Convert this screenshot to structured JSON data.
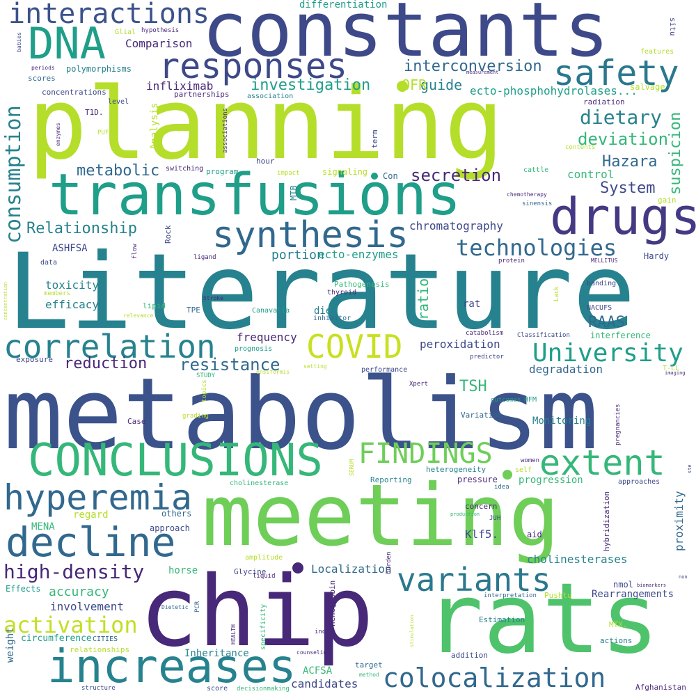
{
  "palette": {
    "yellow_green": "#b5de2b",
    "bright_green": "#6ece58",
    "teal_green": "#35b779",
    "teal": "#1f9e89",
    "blue_teal": "#26828e",
    "steel_blue": "#31688e",
    "indigo": "#3e4989",
    "dark_purple": "#482878"
  },
  "words": {
    "literature": "Literature",
    "metabolism": "metabolism",
    "planning": "planning",
    "constants": "constants",
    "meeting": "meeting",
    "chip": "chip",
    "rats": "rats",
    "transfusions": "transfusions",
    "drugs": "drugs",
    "conclusions": "CONCLUSIONS",
    "dna": "DNA",
    "responses": "responses",
    "safety": "safety",
    "increases": "increases",
    "decline": "decline",
    "synthesis": "synthesis",
    "correlation": "correlation",
    "covid": "COVID",
    "interactions": "interactions",
    "hyperemia": "hyperemia",
    "variants": "variants",
    "extent": "extent",
    "colocalization": "colocalization",
    "findings": "FINDINGS",
    "technologies": "technologies",
    "consumption": "consumption",
    "university": "University",
    "activation": "activation",
    "high_density": "high-density",
    "dietary": "dietary",
    "interconversion": "interconversion",
    "investigation": "investigation",
    "deviation": "deviation",
    "secretion": "secretion",
    "metabolic": "metabolic",
    "relationship": "Relationship",
    "resistance": "resistance",
    "reduction": "reduction",
    "system": "System",
    "hazara": "Hazara",
    "raas": "RAAS",
    "tsh": "TSH",
    "suspicion": "suspicion",
    "differentiation": "differentiation",
    "comparison": "Comparison",
    "guide": "guide",
    "ofr": "OFR",
    "ecto_phospho": "ecto-phosphohydrolases...",
    "infliximab": "infliximab",
    "control": "control",
    "chromatography": "chromatography",
    "ratio": "ratio",
    "portion": "portion",
    "ecto_enzymes": "ecto-enzymes",
    "ashfsa": "ASHFSA",
    "toxicity": "toxicity",
    "efficacy": "efficacy",
    "frequency": "frequency",
    "peroxidation": "peroxidation",
    "degradation": "degradation",
    "proximity": "proximity",
    "cholinesterases": "cholinesterases",
    "localization": "Localization",
    "accuracy": "accuracy",
    "involvement": "involvement",
    "rearrangements": "Rearrangements",
    "candidates": "candidates",
    "acfsa": "ACFSA",
    "inheritance": "Inheritance",
    "klf5": "Klf5.",
    "progression": "progression",
    "monitoring": "Monitoring",
    "mena": "MENA",
    "regard": "regard",
    "others": "others",
    "approach": "approach",
    "horse": "horse",
    "effects": "Effects",
    "weight": "weight",
    "circumference": "circumference",
    "cities": "CITIES",
    "relationships": "relationships",
    "polymorphisms": "polymorphisms",
    "scores": "scores",
    "concentrations": "concentrations",
    "level": "level",
    "t1d": "T1D.",
    "analysis": "Analysis",
    "partnerships": "partnerships",
    "association": "association",
    "radiation": "radiation",
    "salvage": "salvage",
    "features": "features",
    "situ": "situ",
    "glial": "Glial",
    "hypothesis": "hypothesis",
    "babies": "babies",
    "periods": "periods",
    "measurement": "measurement",
    "pufa": "PUFA",
    "enzymes": "enzymes",
    "associations": "associations",
    "term": "term",
    "hour": "hour",
    "switching": "switching",
    "program": "program",
    "impact": "impact",
    "signaling": "signaling",
    "con": "Con",
    "mtb": "MTB",
    "rock": "Rock",
    "flow": "flow",
    "ligand": "ligand",
    "data": "data",
    "members": "members",
    "lipid": "lipid",
    "tpe": "TPE",
    "relevance": "relevance",
    "pathogenesis": "Pathogenesis",
    "thyroid": "thyroid",
    "stroke": "Stroke",
    "canavalia": "Canavalia",
    "diet": "diet",
    "inhibitor": "inhibitor",
    "rat": "rat",
    "prognosis": "prognosis",
    "exposure": "exposure",
    "cattle": "cattle",
    "chemotherapy": "chemotherapy",
    "sinensis": "sinensis",
    "gain": "gain",
    "contents": "contents",
    "protein": "protein",
    "hardy": "Hardy",
    "mellitus": "MELLITUS",
    "banding": "banding",
    "nacufs": "NACUFS",
    "lack": "Lack",
    "catabolism": "catabolism",
    "classification": "Classification",
    "interference": "interference",
    "predictor": "predictor",
    "t_ll": "T-LL",
    "imaging": "imaging",
    "setting": "setting",
    "ensiformis": "ensiformis",
    "performance": "performance",
    "study": "STUDY",
    "topics": "topics",
    "grading": "grading",
    "xpert": "Xpert",
    "outcomes": "outcomes",
    "hfm": "HFM",
    "variation": "Variation",
    "case": "Case",
    "pregnancies": "pregnancies",
    "serum": "SERUM",
    "cholinesterase": "cholinesterase",
    "heterogeneity": "heterogeneity",
    "reporting": "Reporting",
    "self": "self",
    "women": "women",
    "pressure": "pressure",
    "idea": "idea",
    "hybridization": "hybridization",
    "approaches": "approaches",
    "concern": "concern",
    "production": "production",
    "juh": "JUH",
    "aid": "aid",
    "amplitude": "amplitude",
    "glycine": "Glycine",
    "liquid": "liquid",
    "burden": "burden",
    "nmol": "nmol",
    "hemoglobin": "hemoglobin",
    "biomarkers": "biomarkers",
    "non": "non",
    "pushtu": "Pushtu",
    "interpretation": "interpretation",
    "dietetic": "Dietetic",
    "pcr": "PCR",
    "health": "HEALTH",
    "specificity": "specificity",
    "estimation": "Estimation",
    "mtx": "MTX.",
    "index": "index",
    "stimulation": "stimulation",
    "actions": "actions",
    "counseling": "counseling",
    "addition": "addition",
    "target": "target",
    "method": "method",
    "afghanistan": "Afghanistan",
    "structure": "structure",
    "score": "score",
    "decisionmaking": "decisionmaking",
    "concentration": "concentration",
    "ste": "ste"
  }
}
